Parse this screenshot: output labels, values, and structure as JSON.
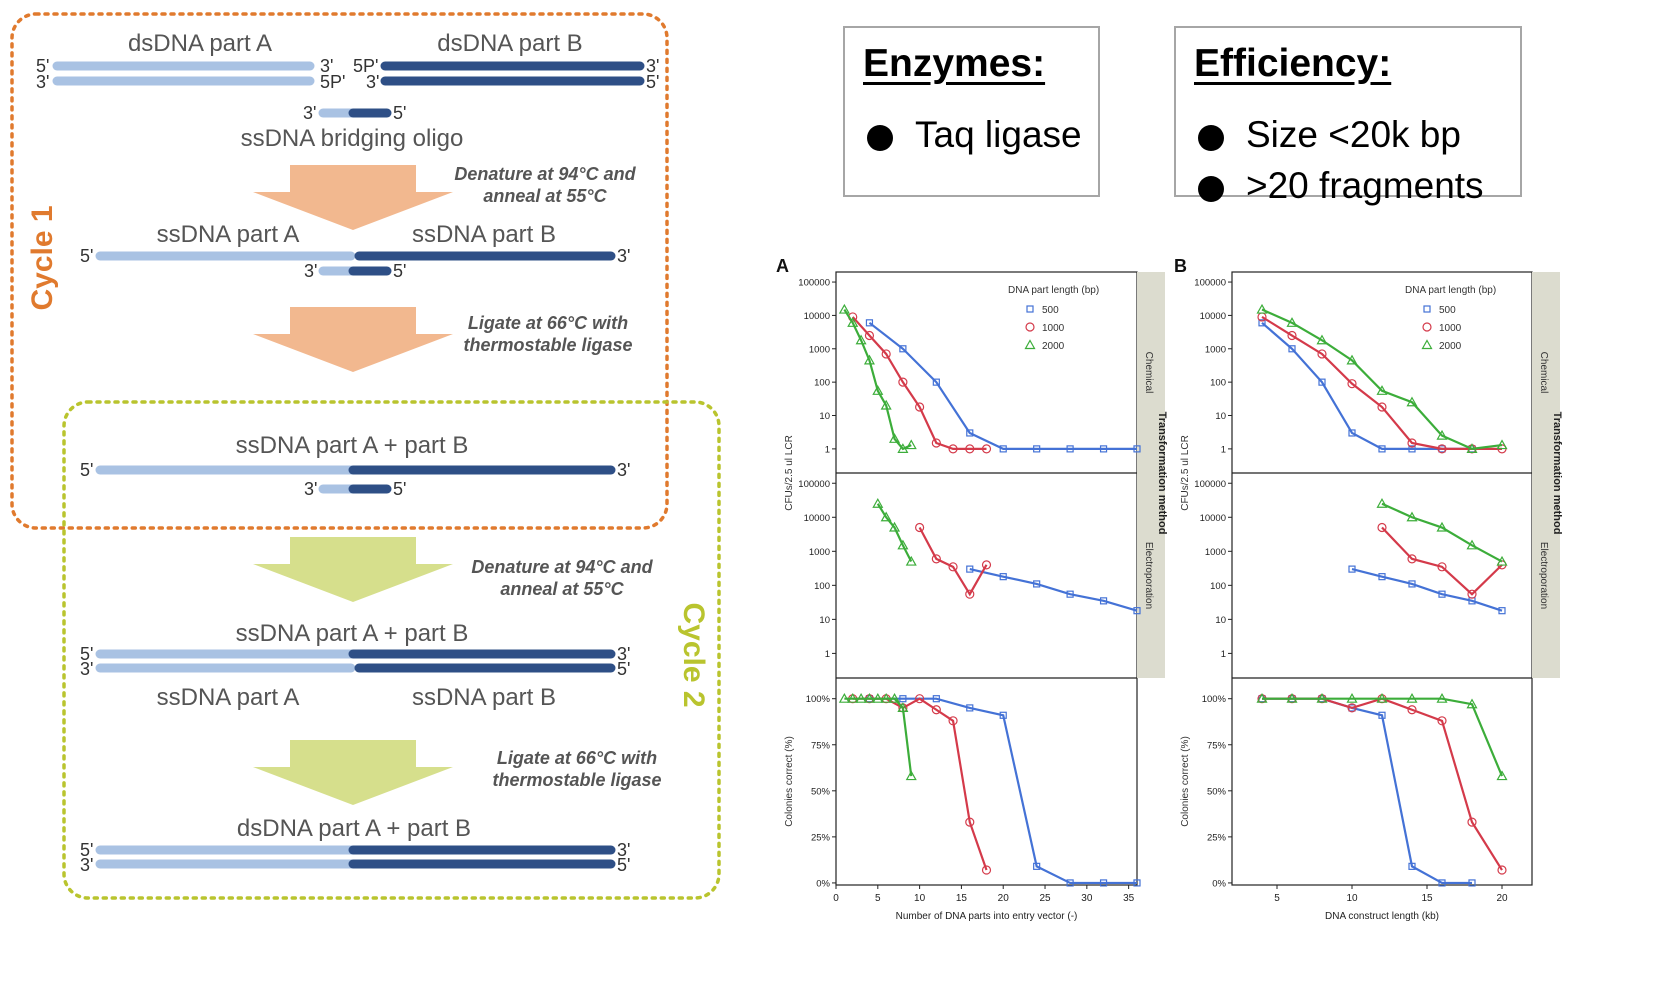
{
  "cycle_diagram": {
    "cycle1_label": "Cycle 1",
    "cycle2_label": "Cycle 2",
    "colors": {
      "part_a": "#a9c2e3",
      "part_b": "#2e4f86",
      "cycle1": "#e07a2e",
      "cycle2": "#b9c42e",
      "arrow1": "#f2b88f",
      "arrow2": "#d6df8c"
    },
    "labels": {
      "ds_part_a": "dsDNA part A",
      "ds_part_b": "dsDNA part B",
      "bridging": "ssDNA bridging oligo",
      "ss_part_a": "ssDNA part A",
      "ss_part_b": "ssDNA part B",
      "ss_ab": "ssDNA part A + part B",
      "ds_ab": "dsDNA part A + part B"
    },
    "ends": {
      "five": "5'",
      "three": "3'",
      "five_p": "5P'"
    },
    "steps": {
      "denature": [
        "Denature at 94°C and",
        "anneal at 55°C"
      ],
      "ligate": [
        "Ligate at 66°C with",
        "thermostable ligase"
      ]
    }
  },
  "enzymes": {
    "heading": "Enzymes:",
    "items": [
      "Taq ligase"
    ]
  },
  "efficiency": {
    "heading": "Efficiency:",
    "items": [
      "Size <20k bp",
      ">20 fragments"
    ]
  },
  "chart_data": [
    {
      "panel": "A",
      "type": "line",
      "xlabel": "Number of DNA parts into entry vector (-)",
      "xlim": [
        0,
        36
      ],
      "xticks": [
        0,
        5,
        10,
        15,
        20,
        25,
        30,
        35
      ],
      "ylabel_top": "CFUs/2.5 ul LCR",
      "ylabel_bottom": "Colonies correct (%)",
      "facet_label": "Transformation method",
      "legend_title": "DNA part length (bp)",
      "legend_entries": [
        "500",
        "1000",
        "2000"
      ],
      "rows": [
        {
          "name": "Chemical",
          "scale": "log",
          "yticks": [
            "100000",
            "10000",
            "1000",
            "100",
            "10",
            "1"
          ],
          "series": [
            {
              "name": "500",
              "x": [
                4,
                8,
                12,
                16,
                20,
                24,
                28,
                32,
                36
              ],
              "y": [
                6000,
                1000,
                100,
                3,
                1,
                1,
                1,
                1,
                1
              ]
            },
            {
              "name": "1000",
              "x": [
                2,
                4,
                6,
                8,
                10,
                12,
                14,
                16,
                18
              ],
              "y": [
                9000,
                2500,
                700,
                100,
                18,
                1.5,
                1,
                1,
                1
              ]
            },
            {
              "name": "2000",
              "x": [
                1,
                2,
                3,
                4,
                5,
                6,
                7,
                8,
                9
              ],
              "y": [
                15000,
                6000,
                1800,
                450,
                55,
                20,
                2,
                1,
                1.3
              ]
            }
          ]
        },
        {
          "name": "Electroporation",
          "scale": "log",
          "yticks": [
            "100000",
            "10000",
            "1000",
            "100",
            "10",
            "1"
          ],
          "series": [
            {
              "name": "500",
              "x": [
                16,
                20,
                24,
                28,
                32,
                36
              ],
              "y": [
                300,
                180,
                110,
                55,
                35,
                18
              ]
            },
            {
              "name": "1000",
              "x": [
                10,
                12,
                14,
                16,
                18
              ],
              "y": [
                5000,
                600,
                350,
                55,
                400
              ]
            },
            {
              "name": "2000",
              "x": [
                5,
                6,
                7,
                8,
                9
              ],
              "y": [
                25000,
                10000,
                5000,
                1500,
                500
              ]
            }
          ]
        },
        {
          "name": "Colonies correct",
          "scale": "linear",
          "yticks": [
            "100%",
            "75%",
            "50%",
            "25%",
            "0%"
          ],
          "series": [
            {
              "name": "500",
              "x": [
                4,
                8,
                12,
                16,
                20,
                24,
                28,
                32,
                36
              ],
              "y": [
                100,
                100,
                100,
                95,
                91,
                9,
                0,
                0,
                0
              ]
            },
            {
              "name": "1000",
              "x": [
                2,
                4,
                6,
                8,
                10,
                12,
                14,
                16,
                18
              ],
              "y": [
                100,
                100,
                100,
                95,
                100,
                94,
                88,
                33,
                7
              ]
            },
            {
              "name": "2000",
              "x": [
                1,
                2,
                3,
                4,
                5,
                6,
                7,
                8,
                9
              ],
              "y": [
                100,
                100,
                100,
                100,
                100,
                100,
                100,
                95,
                58
              ]
            }
          ]
        }
      ]
    },
    {
      "panel": "B",
      "type": "line",
      "xlabel": "DNA construct length (kb)",
      "xlim": [
        2,
        22
      ],
      "xticks": [
        5,
        10,
        15,
        20
      ],
      "ylabel_top": "CFUs/2.5 ul LCR",
      "ylabel_bottom": "Colonies correct (%)",
      "facet_label": "Transformation method",
      "legend_title": "DNA part length (bp)",
      "legend_entries": [
        "500",
        "1000",
        "2000"
      ],
      "rows": [
        {
          "name": "Chemical",
          "scale": "log",
          "yticks": [
            "100000",
            "10000",
            "1000",
            "100",
            "10",
            "1"
          ],
          "series": [
            {
              "name": "500",
              "x": [
                4,
                6,
                8,
                10,
                12,
                14,
                16,
                18
              ],
              "y": [
                6000,
                1000,
                100,
                3,
                1,
                1,
                1,
                1
              ]
            },
            {
              "name": "1000",
              "x": [
                4,
                6,
                8,
                10,
                12,
                14,
                16,
                18,
                20
              ],
              "y": [
                9000,
                2500,
                700,
                90,
                18,
                1.5,
                1,
                1,
                1
              ]
            },
            {
              "name": "2000",
              "x": [
                4,
                6,
                8,
                10,
                12,
                14,
                16,
                18,
                20
              ],
              "y": [
                15000,
                6000,
                1800,
                450,
                55,
                25,
                2.5,
                1,
                1.3
              ]
            }
          ]
        },
        {
          "name": "Electroporation",
          "scale": "log",
          "yticks": [
            "100000",
            "10000",
            "1000",
            "100",
            "10",
            "1"
          ],
          "series": [
            {
              "name": "500",
              "x": [
                10,
                12,
                14,
                16,
                18,
                20
              ],
              "y": [
                300,
                180,
                110,
                55,
                35,
                18
              ]
            },
            {
              "name": "1000",
              "x": [
                12,
                14,
                16,
                18,
                20
              ],
              "y": [
                5000,
                600,
                350,
                55,
                400
              ]
            },
            {
              "name": "2000",
              "x": [
                12,
                14,
                16,
                18,
                20
              ],
              "y": [
                25000,
                10000,
                5000,
                1500,
                500
              ]
            }
          ]
        },
        {
          "name": "Colonies correct",
          "scale": "linear",
          "yticks": [
            "100%",
            "75%",
            "50%",
            "25%",
            "0%"
          ],
          "series": [
            {
              "name": "500",
              "x": [
                4,
                6,
                8,
                10,
                12,
                14,
                16,
                18
              ],
              "y": [
                100,
                100,
                100,
                95,
                91,
                9,
                0,
                0
              ]
            },
            {
              "name": "1000",
              "x": [
                4,
                6,
                8,
                10,
                12,
                14,
                16,
                18,
                20
              ],
              "y": [
                100,
                100,
                100,
                95,
                100,
                94,
                88,
                33,
                7
              ]
            },
            {
              "name": "2000",
              "x": [
                4,
                6,
                8,
                10,
                12,
                14,
                16,
                18,
                20
              ],
              "y": [
                100,
                100,
                100,
                100,
                100,
                100,
                100,
                97,
                58
              ]
            }
          ]
        }
      ]
    }
  ]
}
